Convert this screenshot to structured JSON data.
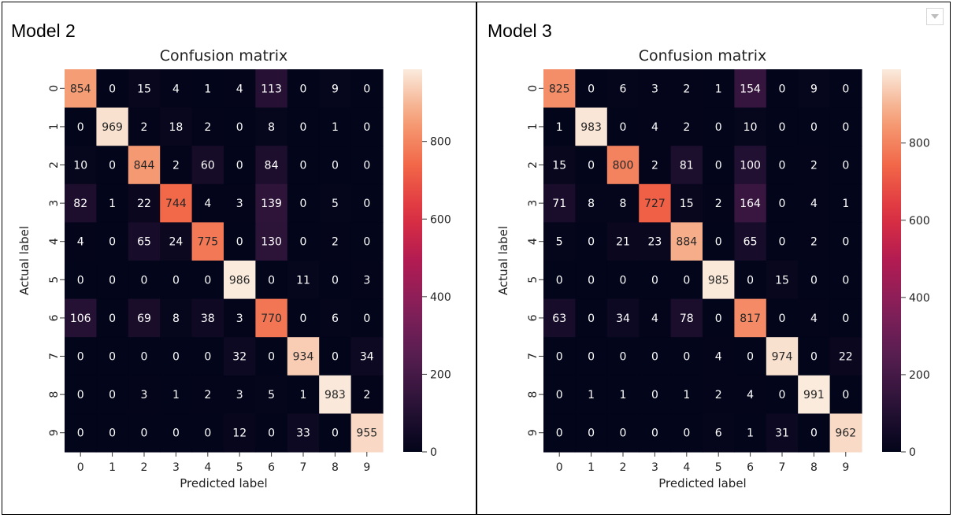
{
  "panels": [
    {
      "title": "Model 2"
    },
    {
      "title": "Model 3"
    }
  ],
  "chart_data": [
    {
      "type": "heatmap",
      "title": "Confusion matrix",
      "xlabel": "Predicted label",
      "ylabel": "Actual label",
      "x_categories": [
        "0",
        "1",
        "2",
        "3",
        "4",
        "5",
        "6",
        "7",
        "8",
        "9"
      ],
      "y_categories": [
        "0",
        "1",
        "2",
        "3",
        "4",
        "5",
        "6",
        "7",
        "8",
        "9"
      ],
      "values": [
        [
          854,
          0,
          15,
          4,
          1,
          4,
          113,
          0,
          9,
          0
        ],
        [
          0,
          969,
          2,
          18,
          2,
          0,
          8,
          0,
          1,
          0
        ],
        [
          10,
          0,
          844,
          2,
          60,
          0,
          84,
          0,
          0,
          0
        ],
        [
          82,
          1,
          22,
          744,
          4,
          3,
          139,
          0,
          5,
          0
        ],
        [
          4,
          0,
          65,
          24,
          775,
          0,
          130,
          0,
          2,
          0
        ],
        [
          0,
          0,
          0,
          0,
          0,
          986,
          0,
          11,
          0,
          3
        ],
        [
          106,
          0,
          69,
          8,
          38,
          3,
          770,
          0,
          6,
          0
        ],
        [
          0,
          0,
          0,
          0,
          0,
          32,
          0,
          934,
          0,
          34
        ],
        [
          0,
          0,
          3,
          1,
          2,
          3,
          5,
          1,
          983,
          2
        ],
        [
          0,
          0,
          0,
          0,
          0,
          12,
          0,
          33,
          0,
          955
        ]
      ],
      "colorbar": {
        "ticks": [
          0,
          200,
          400,
          600,
          800
        ],
        "vmin": 0,
        "vmax": 986
      }
    },
    {
      "type": "heatmap",
      "title": "Confusion matrix",
      "xlabel": "Predicted label",
      "ylabel": "Actual label",
      "x_categories": [
        "0",
        "1",
        "2",
        "3",
        "4",
        "5",
        "6",
        "7",
        "8",
        "9"
      ],
      "y_categories": [
        "0",
        "1",
        "2",
        "3",
        "4",
        "5",
        "6",
        "7",
        "8",
        "9"
      ],
      "values": [
        [
          825,
          0,
          6,
          3,
          2,
          1,
          154,
          0,
          9,
          0
        ],
        [
          1,
          983,
          0,
          4,
          2,
          0,
          10,
          0,
          0,
          0
        ],
        [
          15,
          0,
          800,
          2,
          81,
          0,
          100,
          0,
          2,
          0
        ],
        [
          71,
          8,
          8,
          727,
          15,
          2,
          164,
          0,
          4,
          1
        ],
        [
          5,
          0,
          21,
          23,
          884,
          0,
          65,
          0,
          2,
          0
        ],
        [
          0,
          0,
          0,
          0,
          0,
          985,
          0,
          15,
          0,
          0
        ],
        [
          63,
          0,
          34,
          4,
          78,
          0,
          817,
          0,
          4,
          0
        ],
        [
          0,
          0,
          0,
          0,
          0,
          4,
          0,
          974,
          0,
          22
        ],
        [
          0,
          1,
          1,
          0,
          1,
          2,
          4,
          0,
          991,
          0
        ],
        [
          0,
          0,
          0,
          0,
          0,
          6,
          1,
          31,
          0,
          962
        ]
      ],
      "colorbar": {
        "ticks": [
          0,
          200,
          400,
          600,
          800
        ],
        "vmin": 0,
        "vmax": 991
      }
    }
  ]
}
